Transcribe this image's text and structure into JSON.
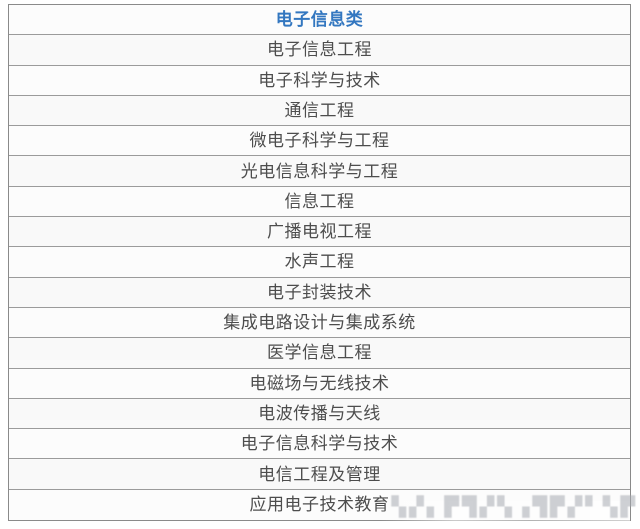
{
  "colors": {
    "accent_header_blue": "#3377c0",
    "row_text_gray": "#4d4d4d",
    "border_gray": "#9b9b9b",
    "background": "#ffffff"
  },
  "table": {
    "header": "电子信息类",
    "rows": [
      "电子信息工程",
      "电子科学与技术",
      "通信工程",
      "微电子科学与工程",
      "光电信息科学与工程",
      "信息工程",
      "广播电视工程",
      "水声工程",
      "电子封装技术",
      "集成电路设计与集成系统",
      "医学信息工程",
      "电磁场与无线技术",
      "电波传播与天线",
      "电子信息科学与技术",
      "电信工程及管理",
      "应用电子技术教育"
    ]
  },
  "watermark": {
    "glyphs": "▚▞▖▛▜▞▚▗▜▛▞▘▚▛"
  }
}
